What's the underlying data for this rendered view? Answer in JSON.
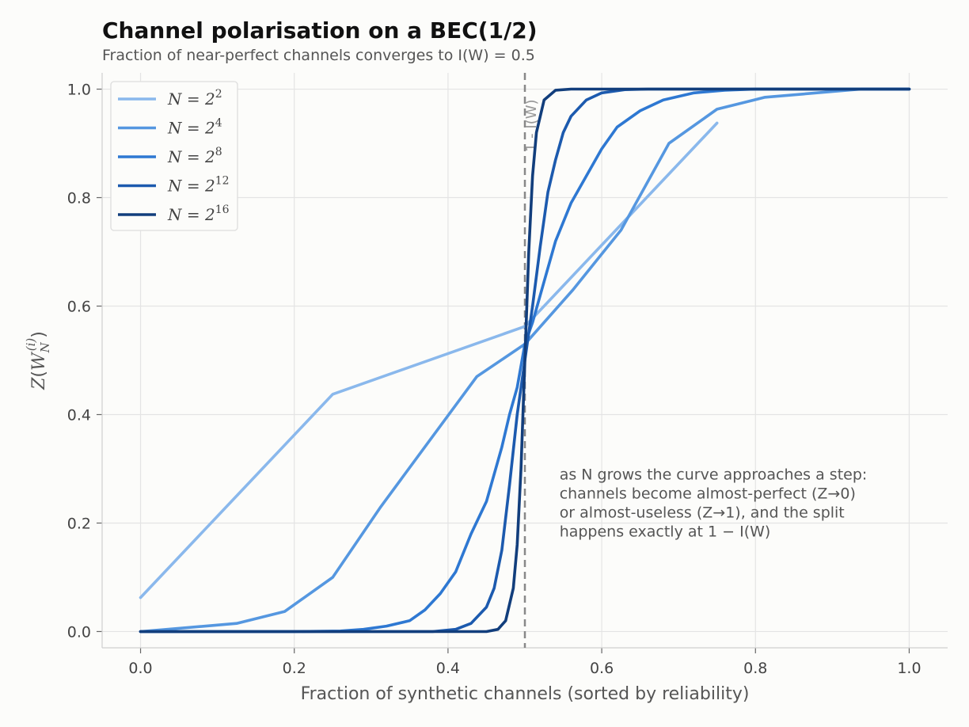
{
  "chart_data": {
    "type": "line",
    "title": "Channel polarisation on a BEC(1/2)",
    "subtitle": "Fraction of near-perfect channels converges to I(W) = 0.5",
    "xlabel": "Fraction of synthetic channels (sorted by reliability)",
    "ylabel": "Z(W_N^(i))",
    "xlim": [
      -0.05,
      1.05
    ],
    "ylim": [
      -0.03,
      1.03
    ],
    "xticks": [
      "0.0",
      "0.2",
      "0.4",
      "0.6",
      "0.8",
      "1.0"
    ],
    "yticks": [
      "0.0",
      "0.2",
      "0.4",
      "0.6",
      "0.8",
      "1.0"
    ],
    "grid": true,
    "legend_position": "top-left",
    "vline": {
      "x": 0.5,
      "label": "1 - I(W)",
      "color": "#888888",
      "style": "dashed"
    },
    "annotation": {
      "lines": [
        "as N grows the curve approaches a step:",
        "channels become almost-perfect (Z→0)",
        "or almost-useless (Z→1), and the split",
        "happens exactly at 1 − I(W)"
      ],
      "x": 0.545,
      "y": 0.28
    },
    "series": [
      {
        "name": "N = 2^2",
        "base": "N = 2",
        "exp": "2",
        "color": "#8ab8ec",
        "points": [
          [
            0.0,
            0.0625
          ],
          [
            0.25,
            0.4375
          ],
          [
            0.5,
            0.5625
          ],
          [
            0.75,
            0.9375
          ]
        ]
      },
      {
        "name": "N = 2^4",
        "base": "N = 2",
        "exp": "4",
        "color": "#5597e0",
        "points": [
          [
            0.0,
            0.0
          ],
          [
            0.125,
            0.015
          ],
          [
            0.1875,
            0.037
          ],
          [
            0.25,
            0.1
          ],
          [
            0.3125,
            0.23
          ],
          [
            0.375,
            0.35
          ],
          [
            0.4375,
            0.47
          ],
          [
            0.5,
            0.53
          ],
          [
            0.5625,
            0.63
          ],
          [
            0.625,
            0.74
          ],
          [
            0.6875,
            0.9
          ],
          [
            0.75,
            0.963
          ],
          [
            0.8125,
            0.985
          ],
          [
            0.9375,
            1.0
          ],
          [
            1.0,
            1.0
          ]
        ]
      },
      {
        "name": "N = 2^8",
        "base": "N = 2",
        "exp": "8",
        "color": "#2e78d2",
        "points": [
          [
            0.0,
            0.0
          ],
          [
            0.2,
            0.0
          ],
          [
            0.26,
            0.001
          ],
          [
            0.29,
            0.004
          ],
          [
            0.32,
            0.01
          ],
          [
            0.35,
            0.02
          ],
          [
            0.37,
            0.04
          ],
          [
            0.39,
            0.07
          ],
          [
            0.41,
            0.11
          ],
          [
            0.43,
            0.18
          ],
          [
            0.45,
            0.24
          ],
          [
            0.47,
            0.34
          ],
          [
            0.48,
            0.4
          ],
          [
            0.49,
            0.45
          ],
          [
            0.5,
            0.53
          ],
          [
            0.51,
            0.57
          ],
          [
            0.52,
            0.62
          ],
          [
            0.54,
            0.72
          ],
          [
            0.56,
            0.79
          ],
          [
            0.58,
            0.84
          ],
          [
            0.6,
            0.89
          ],
          [
            0.62,
            0.93
          ],
          [
            0.65,
            0.96
          ],
          [
            0.68,
            0.98
          ],
          [
            0.72,
            0.993
          ],
          [
            0.76,
            0.998
          ],
          [
            0.8,
            1.0
          ],
          [
            1.0,
            1.0
          ]
        ]
      },
      {
        "name": "N = 2^12",
        "base": "N = 2",
        "exp": "12",
        "color": "#1c5aae",
        "points": [
          [
            0.0,
            0.0
          ],
          [
            0.38,
            0.0
          ],
          [
            0.41,
            0.004
          ],
          [
            0.43,
            0.015
          ],
          [
            0.45,
            0.045
          ],
          [
            0.46,
            0.08
          ],
          [
            0.47,
            0.15
          ],
          [
            0.48,
            0.27
          ],
          [
            0.49,
            0.4
          ],
          [
            0.5,
            0.5
          ],
          [
            0.51,
            0.6
          ],
          [
            0.52,
            0.71
          ],
          [
            0.53,
            0.81
          ],
          [
            0.54,
            0.87
          ],
          [
            0.55,
            0.92
          ],
          [
            0.56,
            0.95
          ],
          [
            0.58,
            0.98
          ],
          [
            0.6,
            0.993
          ],
          [
            0.63,
            0.999
          ],
          [
            0.66,
            1.0
          ],
          [
            1.0,
            1.0
          ]
        ]
      },
      {
        "name": "N = 2^16",
        "base": "N = 2",
        "exp": "16",
        "color": "#123e7c",
        "points": [
          [
            0.0,
            0.0
          ],
          [
            0.45,
            0.0
          ],
          [
            0.465,
            0.004
          ],
          [
            0.475,
            0.02
          ],
          [
            0.485,
            0.08
          ],
          [
            0.49,
            0.16
          ],
          [
            0.495,
            0.3
          ],
          [
            0.5,
            0.5
          ],
          [
            0.505,
            0.7
          ],
          [
            0.51,
            0.84
          ],
          [
            0.515,
            0.92
          ],
          [
            0.525,
            0.98
          ],
          [
            0.54,
            0.998
          ],
          [
            0.56,
            1.0
          ],
          [
            1.0,
            1.0
          ]
        ]
      }
    ]
  }
}
